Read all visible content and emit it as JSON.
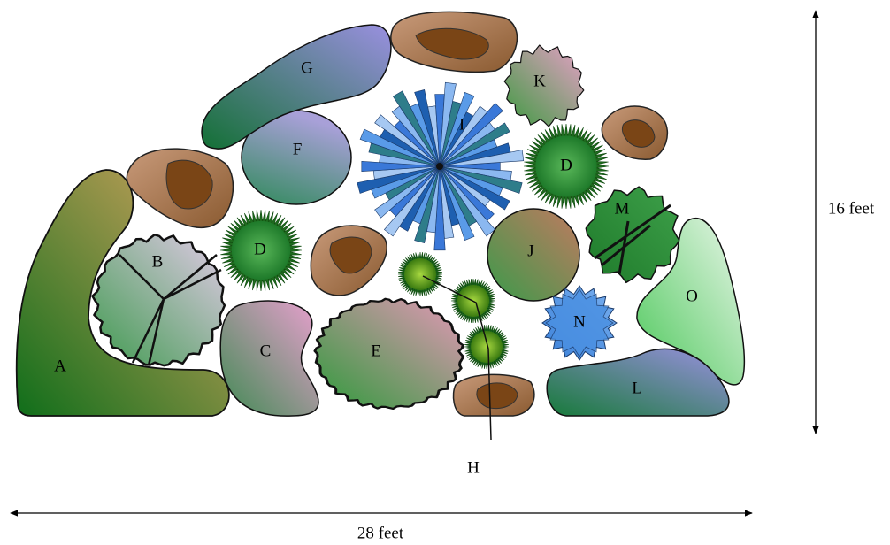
{
  "labels": [
    "A",
    "B",
    "C",
    "D",
    "D",
    "E",
    "F",
    "G",
    "H",
    "I",
    "J",
    "K",
    "L",
    "M",
    "N",
    "O"
  ],
  "dimensions": {
    "height": "16 feet",
    "width": "28 feet"
  }
}
